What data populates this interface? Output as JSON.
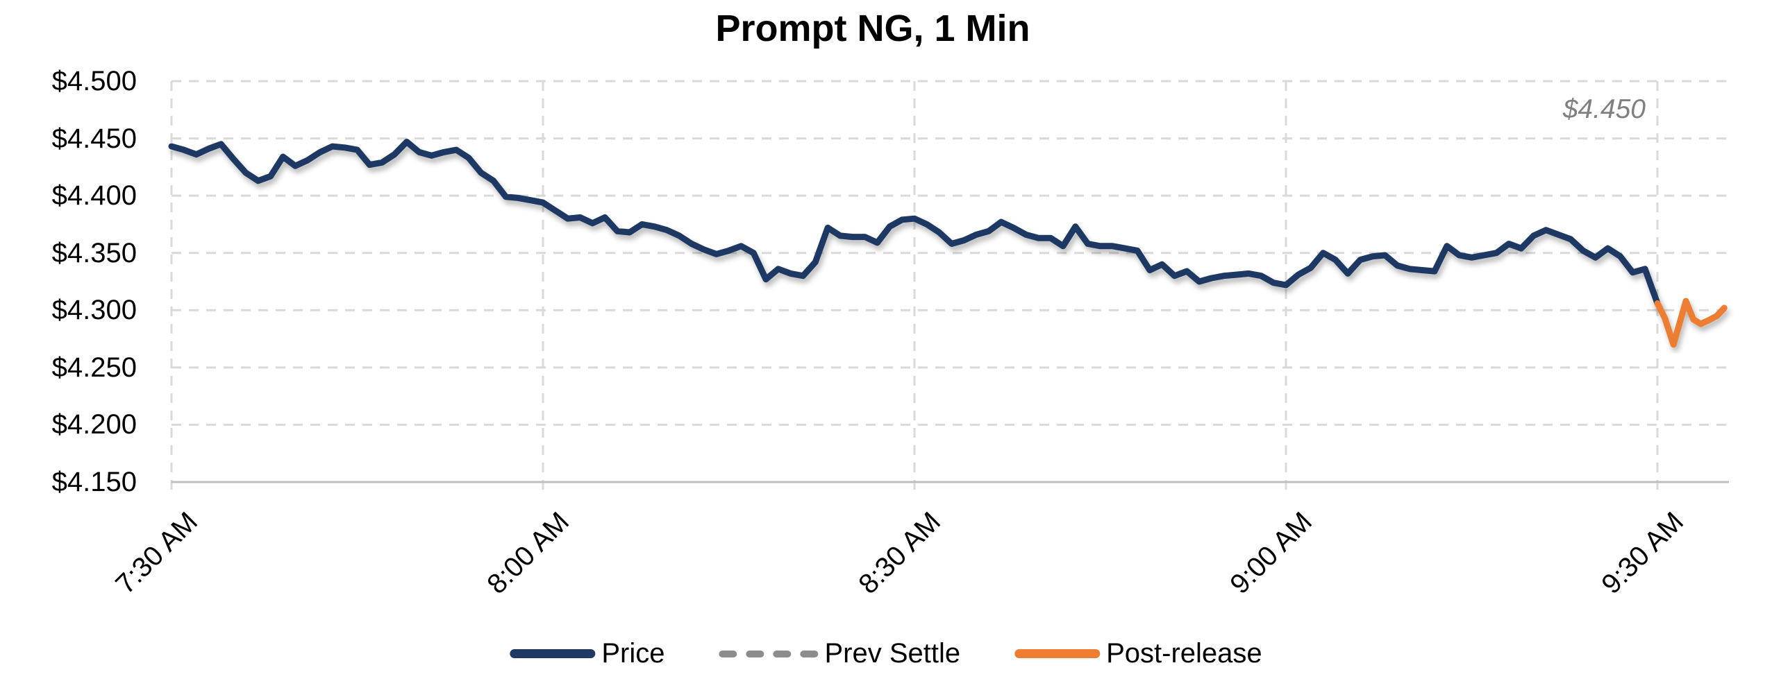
{
  "page": {
    "background": "#FFFFFF"
  },
  "chart_data": {
    "type": "line",
    "title": "Prompt NG, 1 Min",
    "x_axis": {
      "tick_labels": [
        "7:30 AM",
        "8:00 AM",
        "8:30 AM",
        "9:00 AM",
        "9:30 AM"
      ],
      "tick_minutes": [
        0,
        30,
        60,
        90,
        120
      ],
      "minute_span": [
        0,
        125.8
      ],
      "gridlines": "dashed"
    },
    "y_axis": {
      "range": [
        4.15,
        4.5
      ],
      "tick_step": 0.05,
      "ticks": [
        {
          "label": "$4.500",
          "value": 4.5
        },
        {
          "label": "$4.450",
          "value": 4.45
        },
        {
          "label": "$4.400",
          "value": 4.4
        },
        {
          "label": "$4.350",
          "value": 4.35
        },
        {
          "label": "$4.300",
          "value": 4.3
        },
        {
          "label": "$4.250",
          "value": 4.25
        },
        {
          "label": "$4.200",
          "value": 4.2
        },
        {
          "label": "$4.150",
          "value": 4.15
        }
      ],
      "gridlines": "dashed"
    },
    "annotation": {
      "text": "$4.450",
      "color": "#7F7F7F",
      "italic": true
    },
    "series": [
      {
        "name": "Price",
        "color": "#1F3864",
        "line_style": "solid",
        "start_time": "7:30 AM",
        "end_time": "9:30 AM",
        "interval_minutes": 1,
        "start_minute": 0,
        "values": [
          4.443,
          4.44,
          4.436,
          4.441,
          4.445,
          4.432,
          4.42,
          4.413,
          4.417,
          4.434,
          4.426,
          4.431,
          4.438,
          4.443,
          4.442,
          4.44,
          4.427,
          4.429,
          4.436,
          4.447,
          4.438,
          4.435,
          4.438,
          4.44,
          4.433,
          4.42,
          4.413,
          4.399,
          4.398,
          4.396,
          4.394,
          4.387,
          4.38,
          4.381,
          4.376,
          4.381,
          4.369,
          4.368,
          4.375,
          4.373,
          4.37,
          4.365,
          4.358,
          4.353,
          4.349,
          4.352,
          4.356,
          4.35,
          4.327,
          4.336,
          4.332,
          4.33,
          4.342,
          4.372,
          4.365,
          4.364,
          4.364,
          4.359,
          4.373,
          4.379,
          4.38,
          4.375,
          4.368,
          4.358,
          4.361,
          4.366,
          4.369,
          4.377,
          4.372,
          4.366,
          4.363,
          4.363,
          4.356,
          4.373,
          4.358,
          4.356,
          4.356,
          4.354,
          4.352,
          4.335,
          4.34,
          4.33,
          4.334,
          4.325,
          4.328,
          4.33,
          4.331,
          4.332,
          4.33,
          4.324,
          4.322,
          4.331,
          4.337,
          4.35,
          4.344,
          4.332,
          4.344,
          4.347,
          4.348,
          4.339,
          4.336,
          4.335,
          4.334,
          4.356,
          4.348,
          4.346,
          4.348,
          4.35,
          4.358,
          4.354,
          4.365,
          4.37,
          4.366,
          4.362,
          4.352,
          4.346,
          4.354,
          4.347,
          4.333,
          4.336,
          4.306
        ]
      },
      {
        "name": "Prev Settle",
        "color": "#8C8C8C",
        "line_style": "dashed",
        "value": 4.45,
        "minute_range": [
          0,
          120.3
        ]
      },
      {
        "name": "Post-release",
        "color": "#ED7D31",
        "line_style": "solid",
        "minutes": [
          120,
          120.6,
          121.3,
          122.3,
          122.9,
          123.5,
          124.1,
          124.8,
          125.4
        ],
        "values": [
          4.306,
          4.293,
          4.27,
          4.308,
          4.292,
          4.288,
          4.291,
          4.295,
          4.302
        ]
      }
    ],
    "legend": {
      "position": "bottom-center",
      "items": [
        {
          "label": "Price",
          "color": "#1F3864",
          "swatch": "solid"
        },
        {
          "label": "Prev Settle",
          "color": "#8C8C8C",
          "swatch": "dashed"
        },
        {
          "label": "Post-release",
          "color": "#ED7D31",
          "swatch": "solid"
        }
      ]
    },
    "style": {
      "grid_color": "#D9D9D9",
      "axis_color": "#BFBFBF",
      "text_color": "#000000"
    }
  }
}
